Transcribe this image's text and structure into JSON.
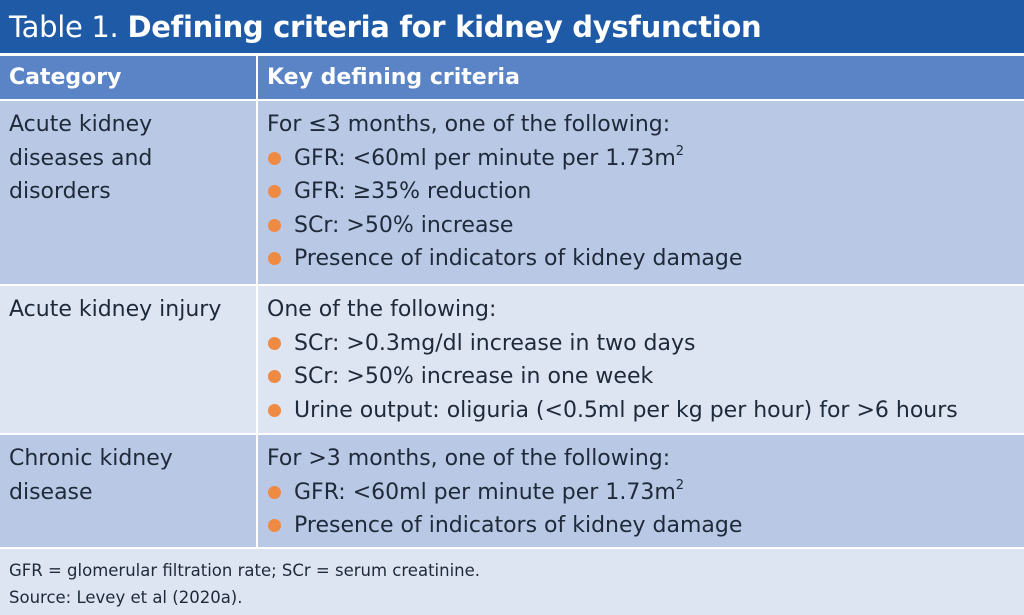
{
  "title": {
    "prefix": "Table 1.",
    "main": "Defining criteria for kidney dysfunction"
  },
  "columns": [
    "Category",
    "Key defining criteria"
  ],
  "rows": [
    {
      "category": [
        "Acute kidney",
        "diseases and",
        "disorders"
      ],
      "intro": "For ≤3 months, one of the following:",
      "items": [
        {
          "text": "GFR: <60ml per minute per 1.73m",
          "sup": "2"
        },
        {
          "text": "GFR: ≥35% reduction"
        },
        {
          "text": "SCr: >50% increase"
        },
        {
          "text": "Presence of indicators of kidney damage"
        }
      ]
    },
    {
      "category": [
        "Acute kidney injury"
      ],
      "intro": "One of the following:",
      "items": [
        {
          "text": "SCr: >0.3mg/dl increase in two days"
        },
        {
          "text": "SCr: >50% increase in one week"
        },
        {
          "text": "Urine output: oliguria (<0.5ml per kg per hour) for >6 hours"
        }
      ]
    },
    {
      "category": [
        "Chronic kidney",
        "disease"
      ],
      "intro": "For >3 months, one of the following:",
      "items": [
        {
          "text": "GFR: <60ml per minute per 1.73m",
          "sup": "2"
        },
        {
          "text": "Presence of indicators of kidney damage"
        }
      ]
    }
  ],
  "footnotes": [
    "GFR = glomerular filtration rate; SCr = serum creatinine.",
    "Source: Levey et al (2020a)."
  ],
  "colors": {
    "title_bg": "#1f5aa6",
    "header_bg": "#5a84c6",
    "row_dark": "#b9c8e4",
    "row_light": "#dde4f2",
    "bullet": "#ef8a43"
  }
}
